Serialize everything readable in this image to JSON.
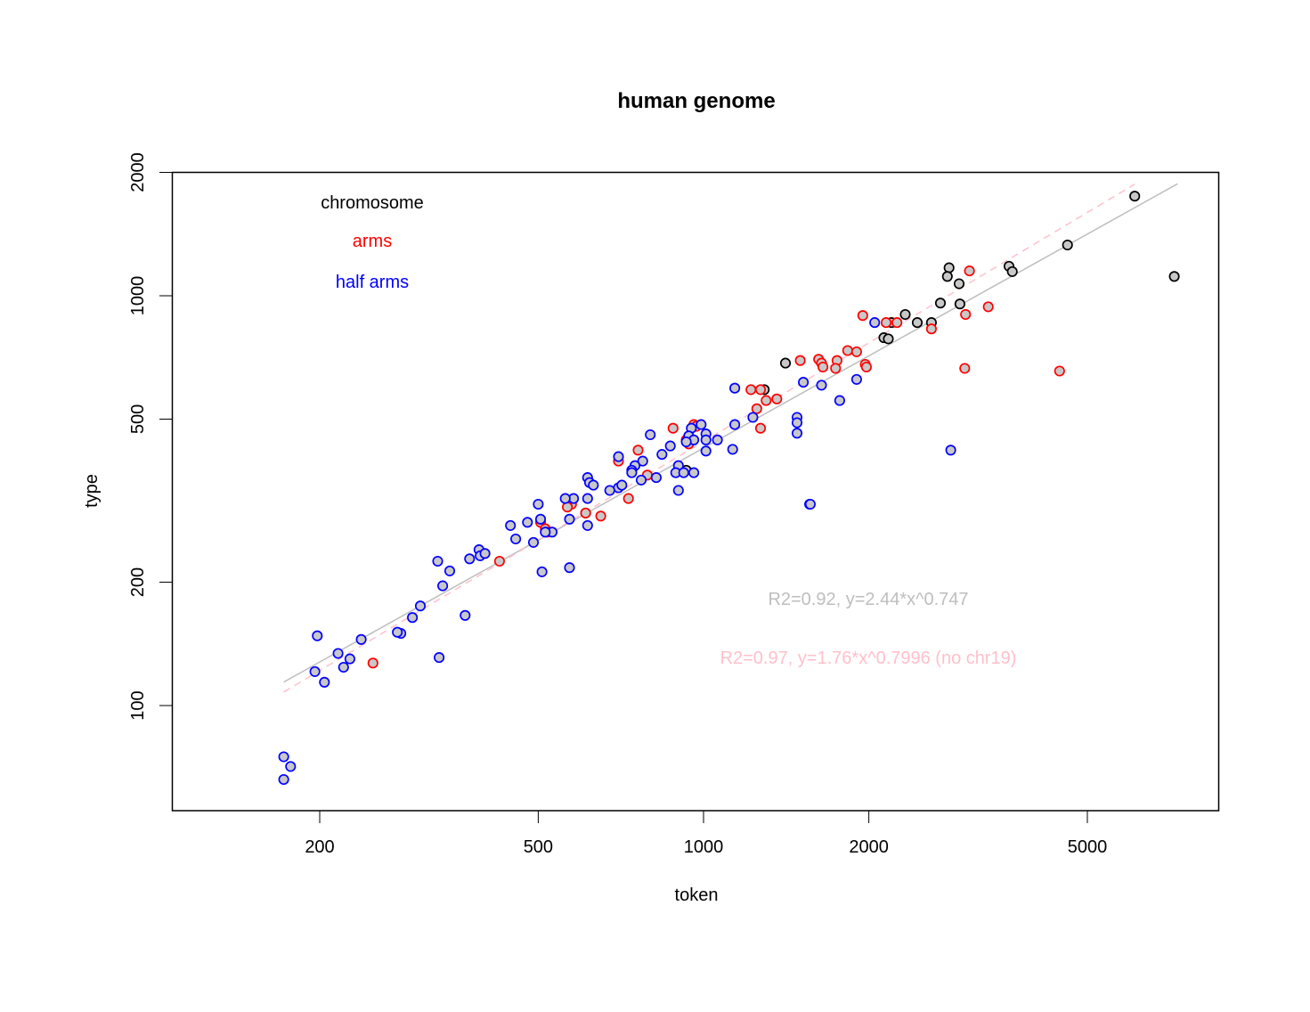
{
  "chart_data": {
    "type": "scatter",
    "title": "human genome",
    "xlabel": "token",
    "ylabel": "type",
    "xscale": "log",
    "yscale": "log",
    "xlim": [
      148,
      8200
    ],
    "ylim": [
      61,
      2000
    ],
    "x_ticks": [
      200,
      500,
      1000,
      2000,
      5000
    ],
    "x_tick_labels": [
      "200",
      "500",
      "1000",
      "2000",
      "5000"
    ],
    "y_ticks": [
      100,
      200,
      500,
      1000,
      2000
    ],
    "y_tick_labels": [
      "100",
      "200",
      "500",
      "1000",
      "2000"
    ],
    "grid": false,
    "legend": {
      "position": "top-left",
      "entries": [
        {
          "label": "chromosome",
          "color": "#000000"
        },
        {
          "label": "arms",
          "color": "#ff0000"
        },
        {
          "label": "half arms",
          "color": "#0000ff"
        }
      ]
    },
    "annotations": [
      {
        "text": "R2=0.92, y=2.44*x^0.747",
        "color": "#bebebe"
      },
      {
        "text": "R2=0.97, y=1.76*x^0.7996 (no chr19)",
        "color": "#ffc0cb"
      }
    ],
    "fit_lines": [
      {
        "name": "all data fit",
        "a": 2.44,
        "b": 0.747,
        "x_from": 172,
        "x_to": 7300,
        "color": "#bebebe",
        "dash": "solid"
      },
      {
        "name": "fit without chr19",
        "a": 1.76,
        "b": 0.7996,
        "x_from": 172,
        "x_to": 6100,
        "color": "#ffc0cb",
        "dash": "dashed"
      }
    ],
    "series": [
      {
        "name": "chromosome",
        "color": "#000000",
        "points": [
          [
            6100,
            1750
          ],
          [
            7200,
            1115
          ],
          [
            4600,
            1330
          ],
          [
            3600,
            1180
          ],
          [
            3650,
            1145
          ],
          [
            2800,
            1170
          ],
          [
            2780,
            1115
          ],
          [
            2920,
            1070
          ],
          [
            2930,
            955
          ],
          [
            2700,
            960
          ],
          [
            2600,
            860
          ],
          [
            2450,
            860
          ],
          [
            2330,
            900
          ],
          [
            2200,
            860
          ],
          [
            2130,
            790
          ],
          [
            2170,
            785
          ],
          [
            1410,
            685
          ],
          [
            1290,
            590
          ],
          [
            930,
            375
          ],
          [
            610,
            295
          ]
        ]
      },
      {
        "name": "arms",
        "color": "#ff0000",
        "points": [
          [
            3050,
            1150
          ],
          [
            3300,
            940
          ],
          [
            3000,
            900
          ],
          [
            1950,
            895
          ],
          [
            2250,
            860
          ],
          [
            2150,
            860
          ],
          [
            2600,
            830
          ],
          [
            2990,
            665
          ],
          [
            4450,
            655
          ],
          [
            1500,
            695
          ],
          [
            1830,
            735
          ],
          [
            1900,
            730
          ],
          [
            1620,
            700
          ],
          [
            1640,
            685
          ],
          [
            1650,
            670
          ],
          [
            1750,
            695
          ],
          [
            1740,
            665
          ],
          [
            1970,
            680
          ],
          [
            1980,
            670
          ],
          [
            1270,
            590
          ],
          [
            1220,
            590
          ],
          [
            1300,
            555
          ],
          [
            1360,
            560
          ],
          [
            1250,
            530
          ],
          [
            1270,
            475
          ],
          [
            960,
            485
          ],
          [
            970,
            480
          ],
          [
            880,
            475
          ],
          [
            930,
            445
          ],
          [
            940,
            435
          ],
          [
            700,
            395
          ],
          [
            760,
            420
          ],
          [
            790,
            365
          ],
          [
            730,
            320
          ],
          [
            575,
            310
          ],
          [
            565,
            305
          ],
          [
            505,
            280
          ],
          [
            515,
            270
          ],
          [
            520,
            265
          ],
          [
            610,
            295
          ],
          [
            650,
            290
          ],
          [
            425,
            225
          ],
          [
            250,
            127
          ]
        ]
      },
      {
        "name": "half arms",
        "color": "#0000ff",
        "points": [
          [
            2050,
            860
          ],
          [
            1640,
            605
          ],
          [
            1900,
            625
          ],
          [
            1770,
            555
          ],
          [
            1520,
            615
          ],
          [
            1480,
            505
          ],
          [
            1480,
            490
          ],
          [
            1480,
            462
          ],
          [
            1140,
            595
          ],
          [
            1230,
            505
          ],
          [
            1140,
            485
          ],
          [
            1130,
            422
          ],
          [
            1060,
            445
          ],
          [
            1010,
            460
          ],
          [
            1010,
            445
          ],
          [
            1010,
            418
          ],
          [
            990,
            485
          ],
          [
            950,
            475
          ],
          [
            940,
            455
          ],
          [
            960,
            445
          ],
          [
            930,
            440
          ],
          [
            900,
            385
          ],
          [
            890,
            370
          ],
          [
            920,
            370
          ],
          [
            960,
            370
          ],
          [
            900,
            335
          ],
          [
            870,
            430
          ],
          [
            840,
            410
          ],
          [
            820,
            360
          ],
          [
            800,
            458
          ],
          [
            775,
            395
          ],
          [
            770,
            355
          ],
          [
            750,
            385
          ],
          [
            740,
            375
          ],
          [
            740,
            370
          ],
          [
            700,
            405
          ],
          [
            700,
            340
          ],
          [
            710,
            345
          ],
          [
            675,
            335
          ],
          [
            615,
            360
          ],
          [
            620,
            350
          ],
          [
            630,
            345
          ],
          [
            615,
            320
          ],
          [
            615,
            275
          ],
          [
            580,
            320
          ],
          [
            560,
            320
          ],
          [
            570,
            285
          ],
          [
            530,
            265
          ],
          [
            515,
            265
          ],
          [
            500,
            310
          ],
          [
            505,
            285
          ],
          [
            490,
            250
          ],
          [
            478,
            280
          ],
          [
            455,
            255
          ],
          [
            445,
            275
          ],
          [
            390,
            240
          ],
          [
            392,
            232
          ],
          [
            400,
            235
          ],
          [
            375,
            228
          ],
          [
            570,
            217
          ],
          [
            508,
            212
          ],
          [
            345,
            213
          ],
          [
            328,
            225
          ],
          [
            335,
            196
          ],
          [
            368,
            166
          ],
          [
            305,
            175
          ],
          [
            295,
            164
          ],
          [
            281,
            150
          ],
          [
            277,
            151
          ],
          [
            330,
            131
          ],
          [
            238,
            145
          ],
          [
            216,
            134
          ],
          [
            227,
            130
          ],
          [
            221,
            124
          ],
          [
            198,
            148
          ],
          [
            196,
            121
          ],
          [
            204,
            114
          ],
          [
            172,
            75
          ],
          [
            177,
            71
          ],
          [
            172,
            66
          ],
          [
            1560,
            310
          ],
          [
            1565,
            310
          ],
          [
            2820,
            420
          ]
        ]
      }
    ]
  }
}
